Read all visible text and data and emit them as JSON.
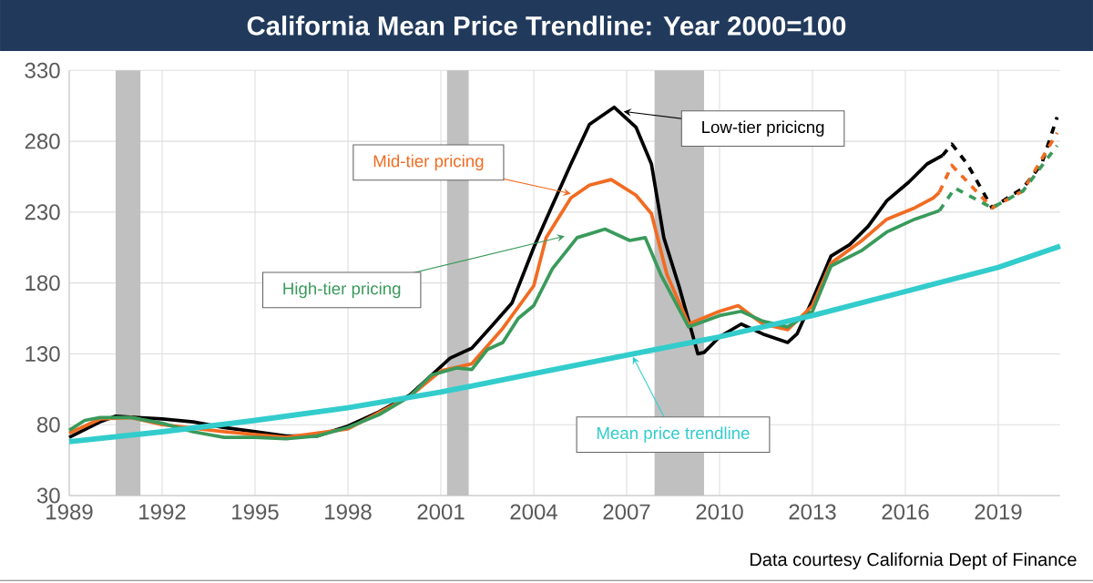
{
  "chart_data": {
    "type": "line",
    "title": "California Mean Price Trendline: Year 2000=100",
    "xlim": [
      1989,
      2021
    ],
    "xticks": [
      1989,
      1992,
      1995,
      1998,
      2001,
      2004,
      2007,
      2010,
      2013,
      2016,
      2019
    ],
    "ylim": [
      30,
      330
    ],
    "yticks": [
      30,
      80,
      130,
      180,
      230,
      280,
      330
    ],
    "grid": true,
    "series": [
      {
        "name": "Low-tier pricicng",
        "color": "#000000",
        "x": [
          1989,
          1990,
          1990.5,
          1991.2,
          1992,
          1993,
          1994,
          1995,
          1996,
          1997,
          1998,
          1999,
          2000,
          2000.7,
          2001.3,
          2002,
          2002.7,
          2003.3,
          2004,
          2004.4,
          2005.2,
          2005.8,
          2006.6,
          2007.3,
          2007.8,
          2008.2,
          2008.7,
          2009.3,
          2009.5,
          2010,
          2010.7,
          2011.4,
          2012.2,
          2012.5,
          2013,
          2013.6,
          2014.2,
          2014.8,
          2015.4,
          2016.1,
          2016.7,
          2017.2
        ],
        "values": [
          71,
          82,
          86,
          85,
          84,
          82,
          78,
          75,
          72,
          72,
          79,
          89,
          101,
          115,
          127,
          134,
          151,
          166,
          205,
          225,
          264,
          292,
          304,
          290,
          264,
          212,
          177,
          130,
          131,
          142,
          151,
          144,
          138,
          144,
          168,
          199,
          207,
          220,
          238,
          251,
          264,
          270
        ]
      },
      {
        "name": "Mid-tier pricing",
        "color": "#f26b21",
        "x": [
          1989,
          1990,
          1991,
          1992,
          1994,
          1996,
          1998,
          2000,
          2001,
          2002,
          2003,
          2004,
          2004.4,
          2005.2,
          2005.8,
          2006.5,
          2007.3,
          2007.8,
          2008.3,
          2009,
          2010,
          2010.6,
          2011.4,
          2012.2,
          2013,
          2013.6,
          2014.6,
          2015.4,
          2016.3,
          2016.9,
          2017.1
        ],
        "values": [
          74,
          84,
          85,
          80,
          75,
          71,
          77,
          100,
          118,
          123,
          148,
          178,
          212,
          240,
          249,
          253,
          242,
          229,
          186,
          151,
          160,
          164,
          151,
          147,
          164,
          194,
          210,
          225,
          233,
          240,
          244
        ]
      },
      {
        "name": "High-tier pricing",
        "color": "#3a9a5b",
        "x": [
          1989,
          1989.5,
          1990,
          1991,
          1992,
          1993,
          1994,
          1995,
          1996,
          1997,
          1998,
          1999,
          2000,
          2000.7,
          2001.5,
          2002,
          2002.5,
          2003,
          2003.5,
          2004,
          2004.6,
          2005.4,
          2006.3,
          2007.1,
          2007.6,
          2008.1,
          2009,
          2010,
          2010.7,
          2011.4,
          2012.2,
          2013,
          2013.6,
          2014.6,
          2015.4,
          2016.3,
          2017.1
        ],
        "values": [
          76,
          83,
          85,
          85,
          81,
          75,
          71,
          71,
          70,
          72,
          78,
          87,
          100,
          115,
          120,
          119,
          133,
          138,
          155,
          164,
          190,
          212,
          218,
          210,
          212,
          186,
          149,
          157,
          160,
          153,
          149,
          160,
          192,
          203,
          216,
          225,
          231
        ]
      },
      {
        "name": "Mean price trendline",
        "color": "#33cccc",
        "x": [
          1989,
          1992,
          1995,
          1998,
          2001,
          2004,
          2007,
          2010,
          2013,
          2016,
          2019,
          2021
        ],
        "values": [
          68,
          75,
          83,
          92,
          103,
          116,
          129,
          142,
          157,
          174,
          191,
          206
        ]
      },
      {
        "color": "#000000",
        "line_style": "dashed",
        "x": [
          2017.2,
          2017.5,
          2018,
          2018.8,
          2019.8,
          2020.4,
          2020.9
        ],
        "values": [
          270,
          278,
          264,
          233,
          247,
          264,
          297
        ]
      },
      {
        "color": "#f26b21",
        "line_style": "dashed",
        "x": [
          2017.1,
          2017.5,
          2018.8,
          2019.8,
          2020.9
        ],
        "values": [
          244,
          263,
          233,
          245,
          286
        ]
      },
      {
        "color": "#3a9a5b",
        "line_style": "dashed",
        "x": [
          2017.1,
          2017.6,
          2018.8,
          2019.8,
          2020.9
        ],
        "values": [
          231,
          247,
          233,
          245,
          277
        ]
      }
    ],
    "bands": [
      {
        "axis": "x",
        "from": 1990.5,
        "to": 1991.3,
        "color": "#c0c0c0"
      },
      {
        "axis": "x",
        "from": 2001.2,
        "to": 2001.9,
        "color": "#c0c0c0"
      },
      {
        "axis": "x",
        "from": 2007.9,
        "to": 2009.5,
        "color": "#c0c0c0"
      }
    ],
    "annotations": [
      "Data courtesy California Dept of Finance"
    ]
  }
}
